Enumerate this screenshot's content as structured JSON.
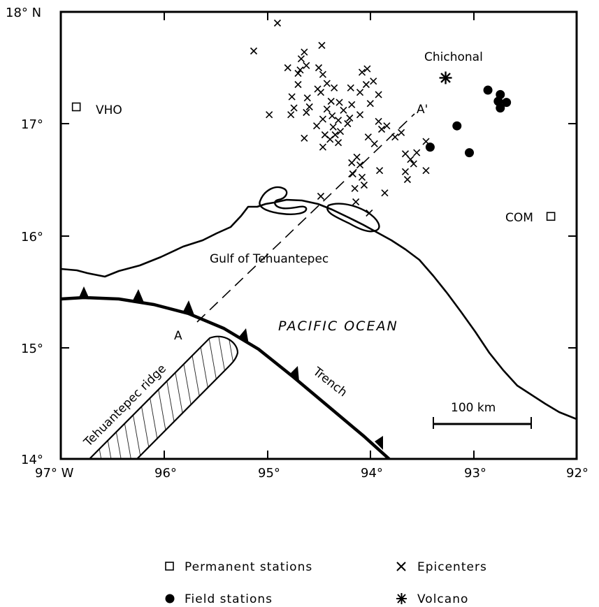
{
  "axes": {
    "lon_labels": [
      "97° W",
      "96°",
      "95°",
      "94°",
      "93°",
      "92°"
    ],
    "lat_labels": [
      "18° N",
      "17°",
      "16°",
      "15°",
      "14°"
    ],
    "lon_range": [
      -97,
      -92
    ],
    "lat_range": [
      14,
      18
    ]
  },
  "labels": {
    "chichonal": "Chichonal",
    "vho": "VHO",
    "com": "COM",
    "gulf": "Gulf of Tehuantepec",
    "pacific": "PACIFIC OCEAN",
    "ridge": "Tehuantepec ridge",
    "trench": "Trench",
    "profile_start": "A",
    "profile_end": "A'",
    "scale": "100 km"
  },
  "legend": {
    "permanent": "Permanent stations",
    "field": "Field stations",
    "epicenters": "Epicenters",
    "volcano": "Volcano"
  },
  "permanent_stations": [
    {
      "name": "VHO",
      "lon": -96.85,
      "lat": 17.15
    },
    {
      "name": "COM",
      "lon": -92.25,
      "lat": 16.17
    }
  ],
  "volcano": {
    "name": "Chichonal",
    "lon": -93.27,
    "lat": 17.41
  },
  "field_stations": [
    {
      "lon": -92.86,
      "lat": 17.3
    },
    {
      "lon": -92.74,
      "lat": 17.26
    },
    {
      "lon": -92.76,
      "lat": 17.2
    },
    {
      "lon": -92.68,
      "lat": 17.19
    },
    {
      "lon": -92.74,
      "lat": 17.14
    },
    {
      "lon": -93.16,
      "lat": 16.98
    },
    {
      "lon": -93.42,
      "lat": 16.79
    },
    {
      "lon": -93.04,
      "lat": 16.74
    }
  ],
  "epicenters": [
    [
      -94.9,
      17.9
    ],
    [
      -95.13,
      17.65
    ],
    [
      -94.47,
      17.7
    ],
    [
      -94.64,
      17.64
    ],
    [
      -94.67,
      17.58
    ],
    [
      -94.62,
      17.52
    ],
    [
      -94.68,
      17.48
    ],
    [
      -94.8,
      17.5
    ],
    [
      -94.7,
      17.45
    ],
    [
      -94.5,
      17.5
    ],
    [
      -94.46,
      17.44
    ],
    [
      -94.35,
      17.32
    ],
    [
      -94.51,
      17.31
    ],
    [
      -94.42,
      17.36
    ],
    [
      -94.48,
      17.28
    ],
    [
      -94.7,
      17.35
    ],
    [
      -94.76,
      17.24
    ],
    [
      -94.61,
      17.23
    ],
    [
      -94.74,
      17.14
    ],
    [
      -94.59,
      17.15
    ],
    [
      -94.77,
      17.08
    ],
    [
      -94.62,
      17.1
    ],
    [
      -94.38,
      17.2
    ],
    [
      -94.3,
      17.19
    ],
    [
      -94.42,
      17.13
    ],
    [
      -94.18,
      17.17
    ],
    [
      -94.26,
      17.12
    ],
    [
      -94.1,
      17.08
    ],
    [
      -94.2,
      17.05
    ],
    [
      -94.37,
      17.07
    ],
    [
      -94.31,
      17.03
    ],
    [
      -94.22,
      17.0
    ],
    [
      -94.36,
      16.97
    ],
    [
      -94.29,
      16.93
    ],
    [
      -94.34,
      16.9
    ],
    [
      -94.46,
      17.04
    ],
    [
      -94.52,
      16.98
    ],
    [
      -94.44,
      16.9
    ],
    [
      -94.39,
      16.86
    ],
    [
      -94.31,
      16.83
    ],
    [
      -94.46,
      16.79
    ],
    [
      -94.64,
      16.87
    ],
    [
      -94.98,
      17.08
    ],
    [
      -94.08,
      17.46
    ],
    [
      -94.03,
      17.49
    ],
    [
      -93.97,
      17.38
    ],
    [
      -94.04,
      17.35
    ],
    [
      -93.92,
      17.26
    ],
    [
      -94.1,
      17.28
    ],
    [
      -94.19,
      17.32
    ],
    [
      -94.0,
      17.18
    ],
    [
      -93.92,
      17.02
    ],
    [
      -93.89,
      16.95
    ],
    [
      -93.84,
      16.98
    ],
    [
      -93.7,
      16.92
    ],
    [
      -93.76,
      16.88
    ],
    [
      -94.02,
      16.88
    ],
    [
      -93.96,
      16.82
    ],
    [
      -94.13,
      16.7
    ],
    [
      -94.18,
      16.65
    ],
    [
      -94.1,
      16.63
    ],
    [
      -94.17,
      16.55
    ],
    [
      -94.08,
      16.52
    ],
    [
      -94.06,
      16.45
    ],
    [
      -94.15,
      16.42
    ],
    [
      -93.91,
      16.58
    ],
    [
      -93.66,
      16.73
    ],
    [
      -93.61,
      16.68
    ],
    [
      -93.66,
      16.57
    ],
    [
      -93.55,
      16.74
    ],
    [
      -93.58,
      16.64
    ],
    [
      -93.64,
      16.5
    ],
    [
      -93.86,
      16.38
    ],
    [
      -93.46,
      16.84
    ],
    [
      -93.46,
      16.58
    ],
    [
      -94.48,
      16.35
    ],
    [
      -94.14,
      16.3
    ],
    [
      -94.01,
      16.2
    ]
  ]
}
